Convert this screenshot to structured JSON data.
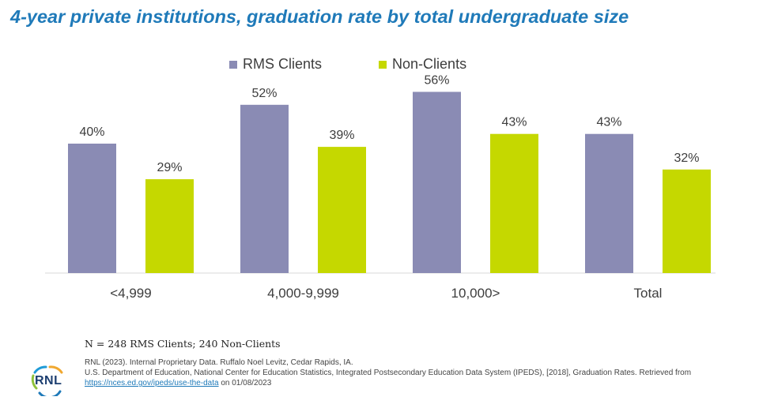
{
  "title": "4-year private institutions, graduation rate by total undergraduate size",
  "colors": {
    "rms": "#8a8bb4",
    "non_clients": "#c5d800",
    "title": "#1f7ab9"
  },
  "chart_data": {
    "type": "bar",
    "categories": [
      "<4,999",
      "4,000-9,999",
      "10,000>",
      "Total"
    ],
    "series": [
      {
        "name": "RMS Clients",
        "values": [
          40,
          52,
          56,
          43
        ]
      },
      {
        "name": "Non-Clients",
        "values": [
          29,
          39,
          43,
          32
        ]
      }
    ],
    "value_suffix": "%",
    "ylim": [
      0,
      60
    ],
    "grid": false,
    "legend_position": "top-center"
  },
  "note": "N = 248 RMS Clients; 240 Non-Clients",
  "sources": {
    "line1": "RNL (2023). Internal Proprietary Data. Ruffalo Noel Levitz, Cedar Rapids, IA.",
    "line2": "U.S. Department of Education, National Center for Education Statistics, Integrated Postsecondary Education Data System (IPEDS), [2018], Graduation Rates. Retrieved from",
    "link": "https://nces.ed.gov/ipeds/use-the-data",
    "line2_end": "on 01/08/2023"
  },
  "logo": {
    "text": "RNL",
    "icon": "rnl-swirl-logo"
  }
}
